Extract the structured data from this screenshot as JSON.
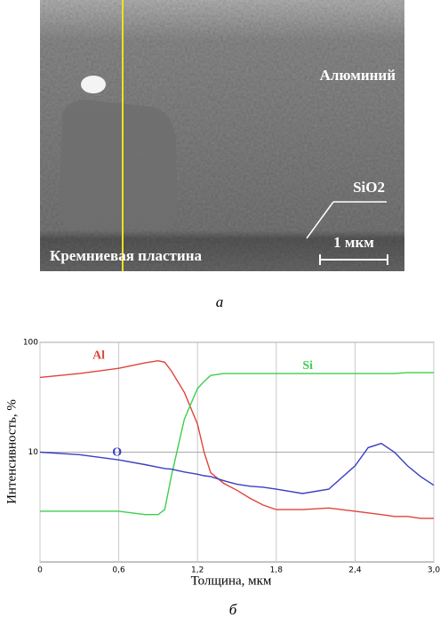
{
  "figure": {
    "image": {
      "matrix_label": "Алюминий",
      "oxide_label": "SiO2",
      "scale_label": "1 мкм",
      "substrate_label": "Кремниевая пластина"
    },
    "caption_a": "а",
    "caption_b": "б"
  },
  "chart_data": {
    "type": "line",
    "x_label": "Толщина, мкм",
    "y_label": "Интенсивность, %",
    "log_y": true,
    "grid": true,
    "x": [
      0,
      0.3,
      0.6,
      0.8,
      0.9,
      0.95,
      1.0,
      1.1,
      1.2,
      1.25,
      1.3,
      1.4,
      1.5,
      1.6,
      1.7,
      1.8,
      2.0,
      2.2,
      2.4,
      2.5,
      2.6,
      2.7,
      2.8,
      2.9,
      3.0
    ],
    "series": [
      {
        "name": "Al",
        "color": "#e0443c",
        "values": [
          48,
          52,
          58,
          65,
          68,
          66,
          55,
          35,
          18,
          10,
          6.5,
          5.2,
          4.5,
          3.8,
          3.3,
          3.0,
          3.0,
          3.1,
          2.9,
          2.8,
          2.7,
          2.6,
          2.6,
          2.5,
          2.5
        ]
      },
      {
        "name": "Si",
        "color": "#3ccf4e",
        "values": [
          2.9,
          2.9,
          2.9,
          2.7,
          2.7,
          3.0,
          6,
          20,
          38,
          44,
          50,
          52,
          52,
          52,
          52,
          52,
          52,
          52,
          52,
          52,
          52,
          52,
          53,
          53,
          53
        ]
      },
      {
        "name": "O",
        "color": "#3a3fc0",
        "values": [
          10,
          9.5,
          8.5,
          7.7,
          7.3,
          7.1,
          7.0,
          6.6,
          6.3,
          6.1,
          6.0,
          5.5,
          5.1,
          4.9,
          4.8,
          4.6,
          4.2,
          4.6,
          7.5,
          11,
          12,
          10,
          7.5,
          6,
          5
        ]
      }
    ],
    "xlim": [
      0,
      3.0
    ],
    "xticks": [
      0,
      {
        "value": 0.6,
        "label": "0,6"
      },
      {
        "value": 1.2,
        "label": "1,2"
      },
      {
        "value": 1.8,
        "label": "1,8"
      },
      {
        "value": 2.4,
        "label": "2,4"
      },
      {
        "value": 3.0,
        "label": "3,0"
      }
    ],
    "ylim": [
      1,
      100
    ],
    "yticks": [
      10,
      100
    ]
  }
}
